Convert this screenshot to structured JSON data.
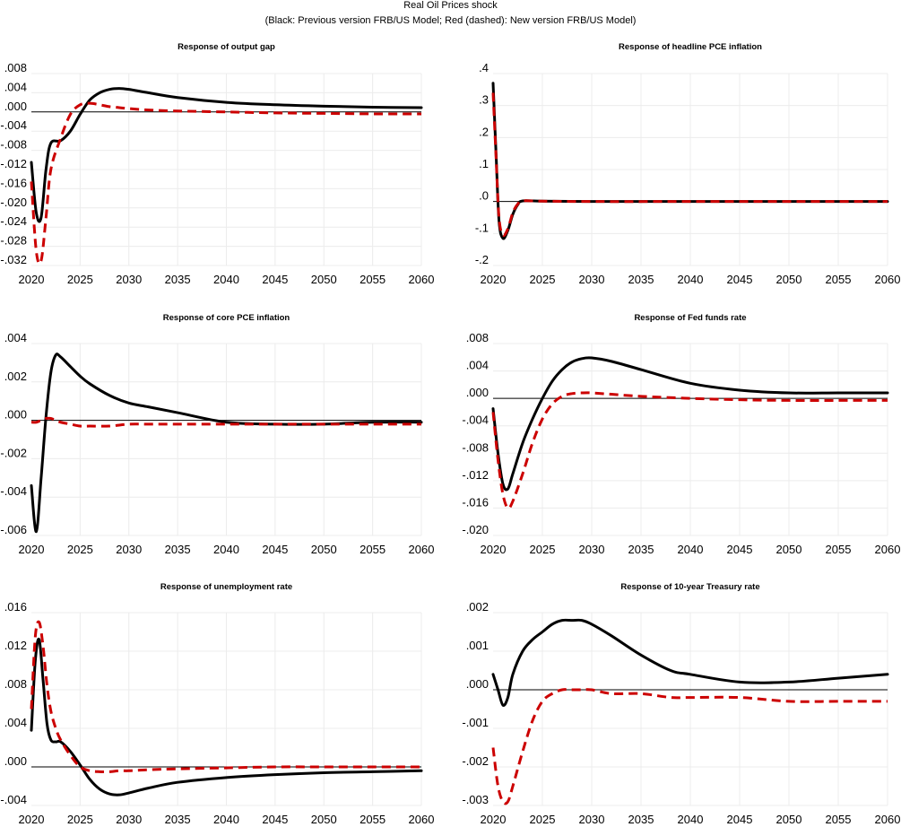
{
  "title": "Real Oil Prices shock",
  "subtitle": "(Black: Previous version FRB/US Model; Red (dashed): New version FRB/US Model)",
  "colors": {
    "previous": "#000000",
    "new": "#cc0000"
  },
  "chart_data": [
    {
      "type": "line",
      "title": "Response of output gap",
      "xlabel": "",
      "ylabel": "",
      "xlim": [
        2020,
        2060
      ],
      "ylim": [
        -0.032,
        0.008
      ],
      "xticks": [
        "2020",
        "2025",
        "2030",
        "2035",
        "2040",
        "2045",
        "2050",
        "2055",
        "2060"
      ],
      "yticks": [
        ".008",
        ".004",
        ".000",
        "-.004",
        "-.008",
        "-.012",
        "-.016",
        "-.020",
        "-.024",
        "-.028",
        "-.032"
      ],
      "ytick_values": [
        0.008,
        0.004,
        0.0,
        -0.004,
        -0.008,
        -0.012,
        -0.016,
        -0.02,
        -0.024,
        -0.028,
        -0.032
      ],
      "grid": true,
      "legend": "subtitle",
      "x": [
        2020,
        2020.5,
        2021,
        2021.5,
        2022,
        2023,
        2024,
        2025,
        2026,
        2027,
        2028,
        2029,
        2030,
        2032,
        2035,
        2040,
        2045,
        2050,
        2055,
        2060
      ],
      "series": [
        {
          "name": "Previous version FRB/US Model",
          "style": "solid",
          "values": [
            -0.0105,
            -0.021,
            -0.022,
            -0.012,
            -0.0065,
            -0.006,
            -0.004,
            -0.0005,
            0.0025,
            0.004,
            0.0047,
            0.0049,
            0.0047,
            0.004,
            0.003,
            0.002,
            0.0015,
            0.0012,
            0.001,
            0.0009
          ]
        },
        {
          "name": "New version FRB/US Model",
          "style": "dashed",
          "values": [
            -0.0145,
            -0.029,
            -0.031,
            -0.022,
            -0.012,
            -0.0055,
            -0.0005,
            0.0015,
            0.0018,
            0.0015,
            0.0011,
            0.0009,
            0.0007,
            0.0004,
            0.0002,
            0.0,
            -0.0002,
            -0.0003,
            -0.0004,
            -0.0004
          ]
        }
      ]
    },
    {
      "type": "line",
      "title": "Response of headline PCE inflation",
      "xlabel": "",
      "ylabel": "",
      "xlim": [
        2020,
        2060
      ],
      "ylim": [
        -0.2,
        0.4
      ],
      "xticks": [
        "2020",
        "2025",
        "2030",
        "2035",
        "2040",
        "2045",
        "2050",
        "2055",
        "2060"
      ],
      "yticks": [
        ".4",
        ".3",
        ".2",
        ".1",
        ".0",
        "-.1",
        "-.2"
      ],
      "ytick_values": [
        0.4,
        0.3,
        0.2,
        0.1,
        0.0,
        -0.1,
        -0.2
      ],
      "grid": true,
      "legend": "subtitle",
      "x": [
        2020,
        2020.3,
        2020.6,
        2021,
        2021.5,
        2022,
        2022.5,
        2023,
        2025,
        2030,
        2040,
        2050,
        2060
      ],
      "series": [
        {
          "name": "Previous version FRB/US Model",
          "style": "solid",
          "values": [
            0.37,
            0.15,
            -0.06,
            -0.115,
            -0.09,
            -0.04,
            -0.01,
            0.002,
            0.001,
            0.0,
            0.0,
            0.0,
            0.0
          ]
        },
        {
          "name": "New version FRB/US Model",
          "style": "dashed",
          "values": [
            0.34,
            0.14,
            -0.05,
            -0.105,
            -0.085,
            -0.035,
            -0.008,
            0.002,
            0.001,
            0.0,
            0.0,
            0.0,
            0.0
          ]
        }
      ]
    },
    {
      "type": "line",
      "title": "Response of core PCE inflation",
      "xlabel": "",
      "ylabel": "",
      "xlim": [
        2020,
        2060
      ],
      "ylim": [
        -0.006,
        0.004
      ],
      "xticks": [
        "2020",
        "2025",
        "2030",
        "2035",
        "2040",
        "2045",
        "2050",
        "2055",
        "2060"
      ],
      "yticks": [
        ".004",
        ".002",
        ".000",
        "-.002",
        "-.004",
        "-.006"
      ],
      "ytick_values": [
        0.004,
        0.002,
        0.0,
        -0.002,
        -0.004,
        -0.006
      ],
      "grid": true,
      "legend": "subtitle",
      "x": [
        2020,
        2020.5,
        2021,
        2021.5,
        2022,
        2022.5,
        2023,
        2024,
        2025,
        2026,
        2028,
        2030,
        2032,
        2035,
        2040,
        2045,
        2050,
        2055,
        2060
      ],
      "series": [
        {
          "name": "Previous version FRB/US Model",
          "style": "solid",
          "values": [
            -0.0034,
            -0.0058,
            -0.003,
            0.0002,
            0.0025,
            0.0034,
            0.0033,
            0.0028,
            0.0023,
            0.0019,
            0.0013,
            0.0009,
            0.0007,
            0.0004,
            -0.0001,
            -0.0002,
            -0.0002,
            -0.0001,
            -0.0001
          ]
        },
        {
          "name": "New version FRB/US Model",
          "style": "dashed",
          "values": [
            -0.0001,
            -0.0001,
            0.0,
            0.0001,
            0.0001,
            0.0,
            -0.0001,
            -0.0002,
            -0.0003,
            -0.0003,
            -0.0003,
            -0.0002,
            -0.0002,
            -0.0002,
            -0.0002,
            -0.0002,
            -0.0002,
            -0.0002,
            -0.0002
          ]
        }
      ]
    },
    {
      "type": "line",
      "title": "Response of Fed funds rate",
      "xlabel": "",
      "ylabel": "",
      "xlim": [
        2020,
        2060
      ],
      "ylim": [
        -0.02,
        0.008
      ],
      "xticks": [
        "2020",
        "2025",
        "2030",
        "2035",
        "2040",
        "2045",
        "2050",
        "2055",
        "2060"
      ],
      "yticks": [
        ".008",
        ".004",
        ".000",
        "-.004",
        "-.008",
        "-.012",
        "-.016",
        "-.020"
      ],
      "ytick_values": [
        0.008,
        0.004,
        0.0,
        -0.004,
        -0.008,
        -0.012,
        -0.016,
        -0.02
      ],
      "grid": true,
      "legend": "subtitle",
      "x": [
        2020,
        2020.5,
        2021,
        2021.5,
        2022,
        2023,
        2024,
        2025,
        2026,
        2027,
        2028,
        2029,
        2030,
        2032,
        2035,
        2040,
        2045,
        2050,
        2055,
        2060
      ],
      "series": [
        {
          "name": "Previous version FRB/US Model",
          "style": "solid",
          "values": [
            -0.0015,
            -0.008,
            -0.0125,
            -0.0132,
            -0.011,
            -0.0065,
            -0.003,
            0.0,
            0.0025,
            0.0042,
            0.0053,
            0.0058,
            0.0059,
            0.0054,
            0.0042,
            0.0022,
            0.0012,
            0.0008,
            0.0008,
            0.0008
          ]
        },
        {
          "name": "New version FRB/US Model",
          "style": "dashed",
          "values": [
            -0.002,
            -0.009,
            -0.014,
            -0.016,
            -0.015,
            -0.011,
            -0.0065,
            -0.003,
            -0.0008,
            0.0003,
            0.0007,
            0.0008,
            0.0008,
            0.0006,
            0.0003,
            0.0,
            -0.0002,
            -0.0003,
            -0.0003,
            -0.0003
          ]
        }
      ]
    },
    {
      "type": "line",
      "title": "Response of unemployment rate",
      "xlabel": "",
      "ylabel": "",
      "xlim": [
        2020,
        2060
      ],
      "ylim": [
        -0.004,
        0.016
      ],
      "xticks": [
        "2020",
        "2025",
        "2030",
        "2035",
        "2040",
        "2045",
        "2050",
        "2055",
        "2060"
      ],
      "yticks": [
        ".016",
        ".012",
        ".008",
        ".004",
        ".000",
        "-.004"
      ],
      "ytick_values": [
        0.016,
        0.012,
        0.008,
        0.004,
        0.0,
        -0.004
      ],
      "grid": true,
      "legend": "subtitle",
      "x": [
        2020,
        2020.4,
        2020.8,
        2021.2,
        2021.6,
        2022,
        2022.5,
        2023,
        2024,
        2025,
        2026,
        2027,
        2028,
        2029,
        2030,
        2032,
        2035,
        2040,
        2045,
        2050,
        2055,
        2060
      ],
      "series": [
        {
          "name": "Previous version FRB/US Model",
          "style": "solid",
          "values": [
            0.0038,
            0.011,
            0.0132,
            0.009,
            0.0045,
            0.0028,
            0.0026,
            0.0026,
            0.0016,
            0.0002,
            -0.0013,
            -0.0023,
            -0.0028,
            -0.0029,
            -0.0027,
            -0.0022,
            -0.0016,
            -0.0011,
            -0.0008,
            -0.0006,
            -0.0005,
            -0.0004
          ]
        },
        {
          "name": "New version FRB/US Model",
          "style": "dashed",
          "values": [
            0.006,
            0.0135,
            0.015,
            0.0125,
            0.0085,
            0.0058,
            0.004,
            0.0028,
            0.0012,
            0.0,
            -0.0004,
            -0.0005,
            -0.0005,
            -0.0004,
            -0.0004,
            -0.0003,
            -0.0002,
            -0.0001,
            0.0,
            0.0,
            0.0,
            0.0
          ]
        }
      ]
    },
    {
      "type": "line",
      "title": "Response of 10-year Treasury rate",
      "xlabel": "",
      "ylabel": "",
      "xlim": [
        2020,
        2060
      ],
      "ylim": [
        -0.003,
        0.002
      ],
      "xticks": [
        "2020",
        "2025",
        "2030",
        "2035",
        "2040",
        "2045",
        "2050",
        "2055",
        "2060"
      ],
      "yticks": [
        ".002",
        ".001",
        ".000",
        "-.001",
        "-.002",
        "-.003"
      ],
      "ytick_values": [
        0.002,
        0.001,
        0.0,
        -0.001,
        -0.002,
        -0.003
      ],
      "grid": true,
      "legend": "subtitle",
      "x": [
        2020,
        2020.5,
        2021,
        2021.5,
        2022,
        2023,
        2024,
        2025,
        2026,
        2027,
        2028,
        2029,
        2030,
        2032,
        2035,
        2038,
        2040,
        2045,
        2050,
        2055,
        2060
      ],
      "series": [
        {
          "name": "Previous version FRB/US Model",
          "style": "solid",
          "values": [
            0.0004,
            0.0,
            -0.0004,
            -0.0002,
            0.0004,
            0.001,
            0.0013,
            0.0015,
            0.0017,
            0.0018,
            0.0018,
            0.0018,
            0.0017,
            0.0014,
            0.0009,
            0.0005,
            0.0004,
            0.0002,
            0.0002,
            0.0003,
            0.0004
          ]
        },
        {
          "name": "New version FRB/US Model",
          "style": "dashed",
          "values": [
            -0.0015,
            -0.0025,
            -0.0029,
            -0.0029,
            -0.0025,
            -0.0016,
            -0.0008,
            -0.0003,
            -0.0001,
            0.0,
            0.0,
            0.0,
            0.0,
            -0.0001,
            -0.0001,
            -0.0002,
            -0.0002,
            -0.0002,
            -0.0003,
            -0.0003,
            -0.0003
          ]
        }
      ]
    }
  ]
}
